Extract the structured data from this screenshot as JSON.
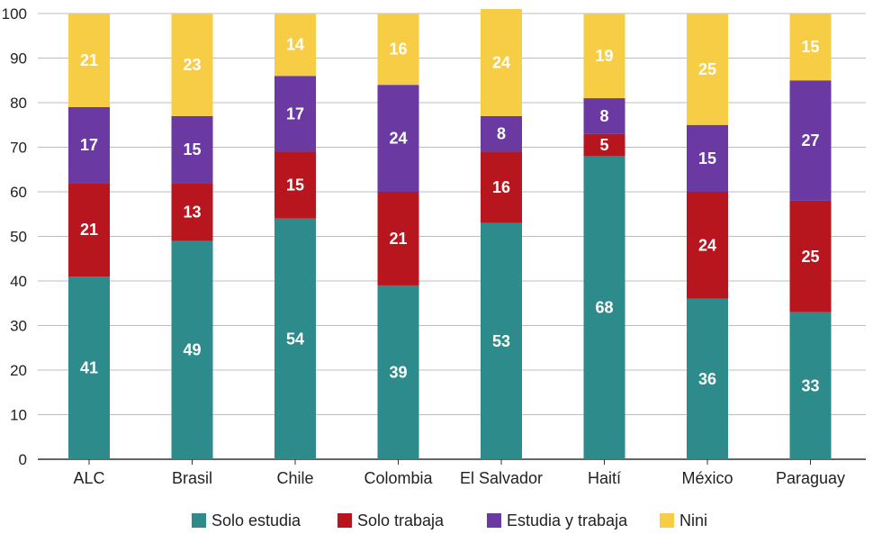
{
  "chart_data": {
    "type": "bar",
    "stacked": true,
    "title": "",
    "xlabel": "",
    "ylabel": "",
    "ylim": [
      0,
      100
    ],
    "yticks": [
      0,
      10,
      20,
      30,
      40,
      50,
      60,
      70,
      80,
      90,
      100
    ],
    "grid": true,
    "legend_position": "bottom",
    "categories": [
      "ALC",
      "Brasil",
      "Chile",
      "Colombia",
      "El Salvador",
      "Haití",
      "México",
      "Paraguay"
    ],
    "series": [
      {
        "name": "Solo estudia",
        "color": "#2e8b8b",
        "values": [
          41,
          49,
          54,
          39,
          53,
          68,
          36,
          33
        ]
      },
      {
        "name": "Solo trabaja",
        "color": "#b8161f",
        "values": [
          21,
          13,
          15,
          21,
          16,
          5,
          24,
          25
        ]
      },
      {
        "name": "Estudia y trabaja",
        "color": "#6a3aa2",
        "values": [
          17,
          15,
          17,
          24,
          8,
          8,
          15,
          27
        ]
      },
      {
        "name": "Nini",
        "color": "#f8cd46",
        "values": [
          21,
          23,
          14,
          16,
          24,
          19,
          25,
          15
        ]
      }
    ]
  }
}
